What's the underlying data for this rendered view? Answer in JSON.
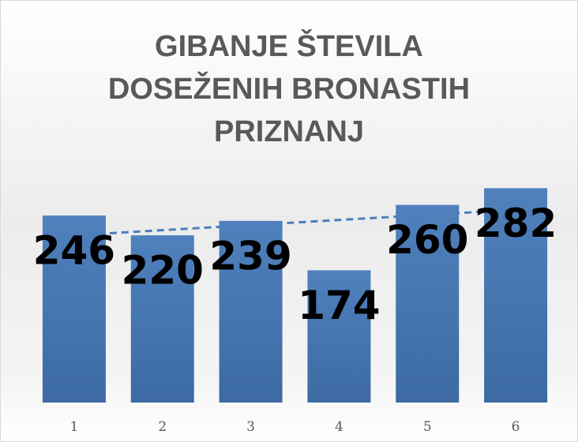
{
  "chart_data": {
    "type": "bar",
    "title": "GIBANJE ŠTEVILA DOSEŽENIH BRONASTIH PRIZNANJ",
    "categories": [
      "1",
      "2",
      "3",
      "4",
      "5",
      "6"
    ],
    "values": [
      246,
      220,
      239,
      174,
      260,
      282
    ],
    "color": "#4f81bd",
    "trendline": true
  }
}
